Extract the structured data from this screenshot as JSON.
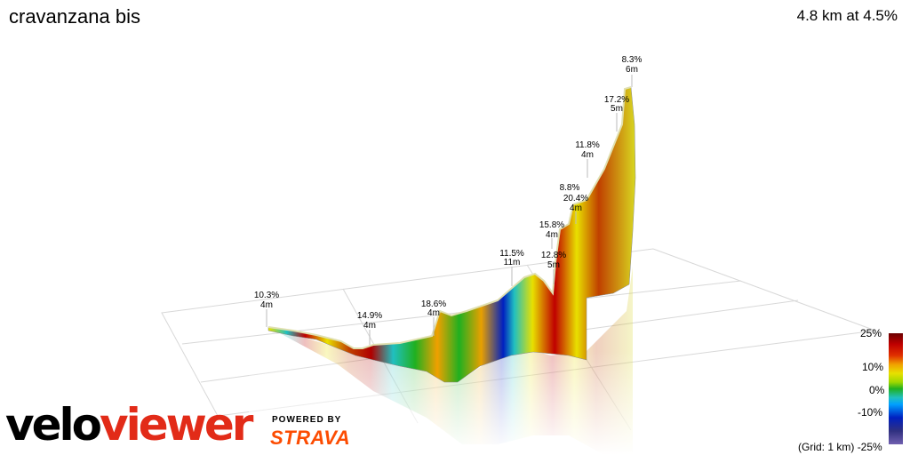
{
  "header": {
    "title": "cravanzana bis",
    "summary": "4.8 km at 4.5%"
  },
  "climb_labels": [
    {
      "grade": "10.3%",
      "length": "4m"
    },
    {
      "grade": "14.9%",
      "length": "4m"
    },
    {
      "grade": "18.6%",
      "length": "4m"
    },
    {
      "grade": "11.5%",
      "length": "11m"
    },
    {
      "grade": "12.8%",
      "length": "5m"
    },
    {
      "grade": "15.8%",
      "length": "4m"
    },
    {
      "grade": "8.8%",
      "length": ""
    },
    {
      "grade": "20.4%",
      "length": "4m"
    },
    {
      "grade": "11.8%",
      "length": "4m"
    },
    {
      "grade": "17.2%",
      "length": "5m"
    },
    {
      "grade": "8.3%",
      "length": "6m"
    }
  ],
  "scale": {
    "labels": [
      "25%",
      "10%",
      "0%",
      "-10%",
      "-25%"
    ],
    "grid_note": "(Grid: 1 km)"
  },
  "branding": {
    "logo_velo": "velo",
    "logo_viewer": "viewer",
    "powered_by": "POWERED BY",
    "strava": "STRAVA"
  },
  "colors": {
    "logo_red": "#e22b18",
    "strava_orange": "#fc4c02"
  }
}
